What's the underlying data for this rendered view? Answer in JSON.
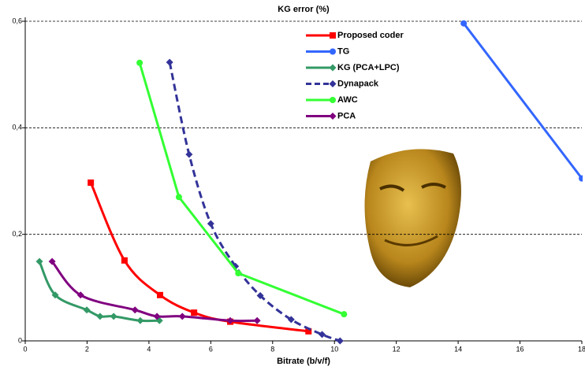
{
  "chart_data": {
    "type": "line",
    "title": "KG error (%)",
    "x_label": "Bitrate (b/v/f)",
    "xlim": [
      0,
      18
    ],
    "xticks": [
      0,
      2,
      4,
      6,
      8,
      10,
      12,
      14,
      16,
      18
    ],
    "ylim": [
      0,
      0.6
    ],
    "yticks": [
      0,
      {
        "value": 0.2,
        "label": "0,2"
      },
      {
        "value": 0.4,
        "label": "0,4"
      },
      {
        "value": 0.6,
        "label": "0,6"
      }
    ],
    "grid": true,
    "legend": "top",
    "series": [
      {
        "name": "Proposed coder",
        "color": "#ff0000",
        "marker": "square",
        "smooth": true,
        "x": [
          2.12,
          3.21,
          4.36,
          5.46,
          6.63,
          9.16
        ],
        "values": [
          0.297,
          0.151,
          0.086,
          0.053,
          0.036,
          0.018
        ]
      },
      {
        "name": "TG",
        "color": "#3366ff",
        "marker": "circle",
        "x": [
          14.18,
          18
        ],
        "values": [
          0.596,
          0.305
        ]
      },
      {
        "name": "KG (PCA+LPC)",
        "color": "#339966",
        "marker": "diamond",
        "smooth": true,
        "x": [
          0.46,
          0.97,
          1.99,
          2.42,
          2.86,
          3.72,
          4.34
        ],
        "values": [
          0.149,
          0.086,
          0.058,
          0.046,
          0.046,
          0.038,
          0.038
        ]
      },
      {
        "name": "Dynapack",
        "color": "#333399",
        "marker": "diamond",
        "smooth": true,
        "dashed": true,
        "x": [
          4.67,
          5.3,
          6.0,
          6.8,
          7.6,
          8.6,
          9.6,
          10.18
        ],
        "values": [
          0.523,
          0.35,
          0.22,
          0.14,
          0.085,
          0.04,
          0.012,
          0
        ]
      },
      {
        "name": "AWC",
        "color": "#33ff33",
        "marker": "circle",
        "x": [
          3.7,
          4.97,
          6.89,
          10.31
        ],
        "values": [
          0.522,
          0.27,
          0.127,
          0.05
        ]
      },
      {
        "name": "PCA",
        "color": "#800080",
        "marker": "diamond",
        "smooth": true,
        "x": [
          0.87,
          1.79,
          3.55,
          4.26,
          5.08,
          6.63,
          7.5
        ],
        "values": [
          0.149,
          0.086,
          0.058,
          0.046,
          0.046,
          0.038,
          0.038
        ]
      }
    ]
  }
}
